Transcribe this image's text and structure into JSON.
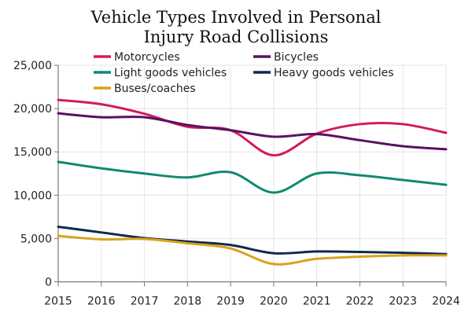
{
  "chart_data": {
    "type": "line",
    "title": "Vehicle Types Involved in Personal Injury Road Collisions",
    "title_lines": [
      "Vehicle Types Involved in Personal",
      "Injury Road Collisions"
    ],
    "xlabel": "",
    "ylabel": "",
    "x": [
      2015,
      2016,
      2017,
      2018,
      2019,
      2020,
      2021,
      2022,
      2023,
      2024
    ],
    "x_tick_labels": [
      "2015",
      "2016",
      "2017",
      "2018",
      "2019",
      "2020",
      "2021",
      "2022",
      "2023",
      "2024"
    ],
    "ylim": [
      0,
      25000
    ],
    "y_ticks": [
      0,
      5000,
      10000,
      15000,
      20000,
      25000
    ],
    "y_tick_labels": [
      "0",
      "5,000",
      "10,000",
      "15,000",
      "20,000",
      "25,000"
    ],
    "grid": true,
    "smooth": true,
    "legend_position": "top",
    "series": [
      {
        "name": "Motorcycles",
        "color": "#d31b5c",
        "values": [
          21000,
          20500,
          19400,
          17900,
          17500,
          14600,
          17100,
          18200,
          18200,
          17200
        ]
      },
      {
        "name": "Bicycles",
        "color": "#5b1162",
        "values": [
          19450,
          19000,
          19000,
          18100,
          17500,
          16750,
          17050,
          16350,
          15650,
          15300
        ]
      },
      {
        "name": "Light goods vehicles",
        "color": "#108a70",
        "values": [
          13850,
          13100,
          12500,
          12050,
          12650,
          10300,
          12500,
          12300,
          11750,
          11200
        ]
      },
      {
        "name": "Heavy goods vehicles",
        "color": "#0e2a4e",
        "values": [
          6350,
          5700,
          5050,
          4650,
          4250,
          3300,
          3500,
          3450,
          3350,
          3200
        ]
      },
      {
        "name": "Buses/coaches",
        "color": "#d9a21c",
        "values": [
          5300,
          4900,
          4950,
          4450,
          3850,
          2050,
          2650,
          2900,
          3050,
          3050
        ]
      }
    ]
  }
}
